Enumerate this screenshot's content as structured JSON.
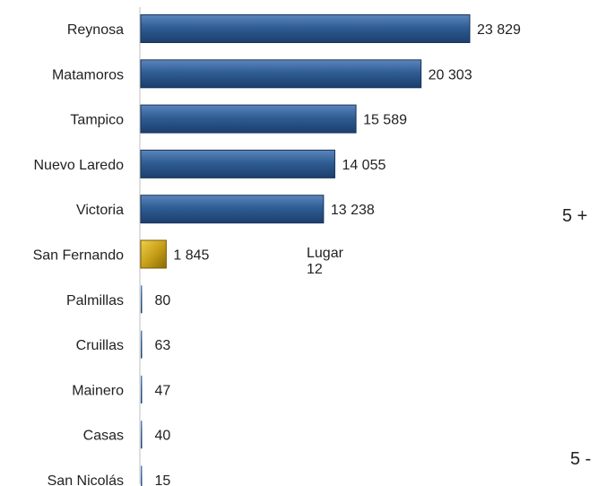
{
  "chart_data": {
    "type": "bar",
    "orientation": "horizontal",
    "categories": [
      "Reynosa",
      "Matamoros",
      "Tampico",
      "Nuevo Laredo",
      "Victoria",
      "San Fernando",
      "Palmillas",
      "Cruillas",
      "Mainero",
      "Casas",
      "San Nicolás"
    ],
    "values": [
      23829,
      20303,
      15589,
      14055,
      13238,
      1845,
      80,
      63,
      47,
      40,
      15
    ],
    "value_labels": [
      "23 829",
      "20 303",
      "15 589",
      "14 055",
      "13 238",
      "1 845",
      "80",
      "63",
      "47",
      "40",
      "15"
    ],
    "highlight_category": "San Fernando",
    "colors": {
      "bar": "#2f5d94",
      "highlight": "#c9a01a",
      "axis": "#bfbfbf"
    },
    "xlim": [
      0,
      25000
    ],
    "title": "",
    "xlabel": "",
    "ylabel": ""
  },
  "annotation": {
    "line1": "Lugar",
    "line2": "12"
  },
  "side_labels": {
    "top": "5 +",
    "bottom": "5 -"
  }
}
